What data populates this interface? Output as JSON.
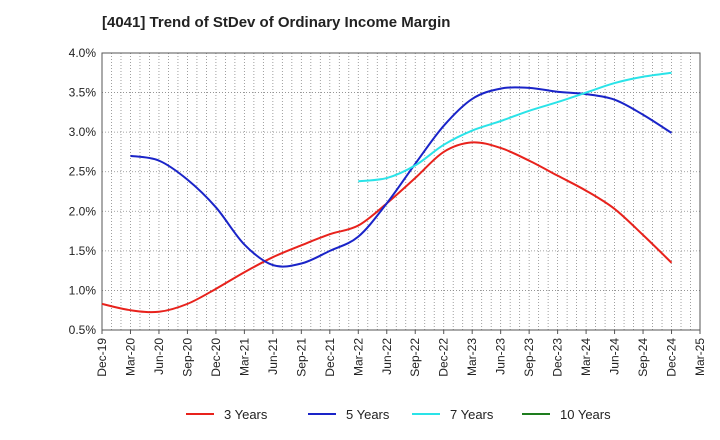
{
  "title": "[4041]  Trend of StDev of Ordinary Income Margin",
  "chart_data": {
    "type": "line",
    "title": "[4041]  Trend of StDev of Ordinary Income Margin",
    "xlabel": "",
    "ylabel": "",
    "ylim": [
      0.5,
      4.0
    ],
    "yticks": [
      "0.5%",
      "1.0%",
      "1.5%",
      "2.0%",
      "2.5%",
      "3.0%",
      "3.5%",
      "4.0%"
    ],
    "ytick_values": [
      0.5,
      1.0,
      1.5,
      2.0,
      2.5,
      3.0,
      3.5,
      4.0
    ],
    "x": [
      "Dec-19",
      "Mar-20",
      "Jun-20",
      "Sep-20",
      "Dec-20",
      "Mar-21",
      "Jun-21",
      "Sep-21",
      "Dec-21",
      "Mar-22",
      "Jun-22",
      "Sep-22",
      "Dec-22",
      "Mar-23",
      "Jun-23",
      "Sep-23",
      "Dec-23",
      "Mar-24",
      "Jun-24",
      "Sep-24",
      "Dec-24",
      "Mar-25"
    ],
    "grid": true,
    "legend_position": "bottom",
    "series": [
      {
        "name": "3 Years",
        "color": "#e8221c",
        "values": [
          0.83,
          0.75,
          0.73,
          0.83,
          1.02,
          1.23,
          1.42,
          1.57,
          1.71,
          1.82,
          2.1,
          2.42,
          2.75,
          2.87,
          2.8,
          2.64,
          2.45,
          2.26,
          2.03,
          1.7,
          1.35,
          null
        ]
      },
      {
        "name": "5 Years",
        "color": "#1a24c8",
        "values": [
          null,
          2.7,
          2.64,
          2.4,
          2.05,
          1.58,
          1.32,
          1.34,
          1.5,
          1.68,
          2.1,
          2.6,
          3.08,
          3.42,
          3.55,
          3.56,
          3.51,
          3.48,
          3.41,
          3.22,
          2.99,
          null
        ]
      },
      {
        "name": "7 Years",
        "color": "#2ae3e8",
        "values": [
          null,
          null,
          null,
          null,
          null,
          null,
          null,
          null,
          null,
          2.38,
          2.42,
          2.58,
          2.84,
          3.02,
          3.14,
          3.27,
          3.38,
          3.5,
          3.62,
          3.7,
          3.75,
          null
        ]
      },
      {
        "name": "10 Years",
        "color": "#1e7d1e",
        "values": [
          null,
          null,
          null,
          null,
          null,
          null,
          null,
          null,
          null,
          null,
          null,
          null,
          null,
          null,
          null,
          null,
          null,
          null,
          null,
          null,
          null,
          null
        ]
      }
    ]
  }
}
